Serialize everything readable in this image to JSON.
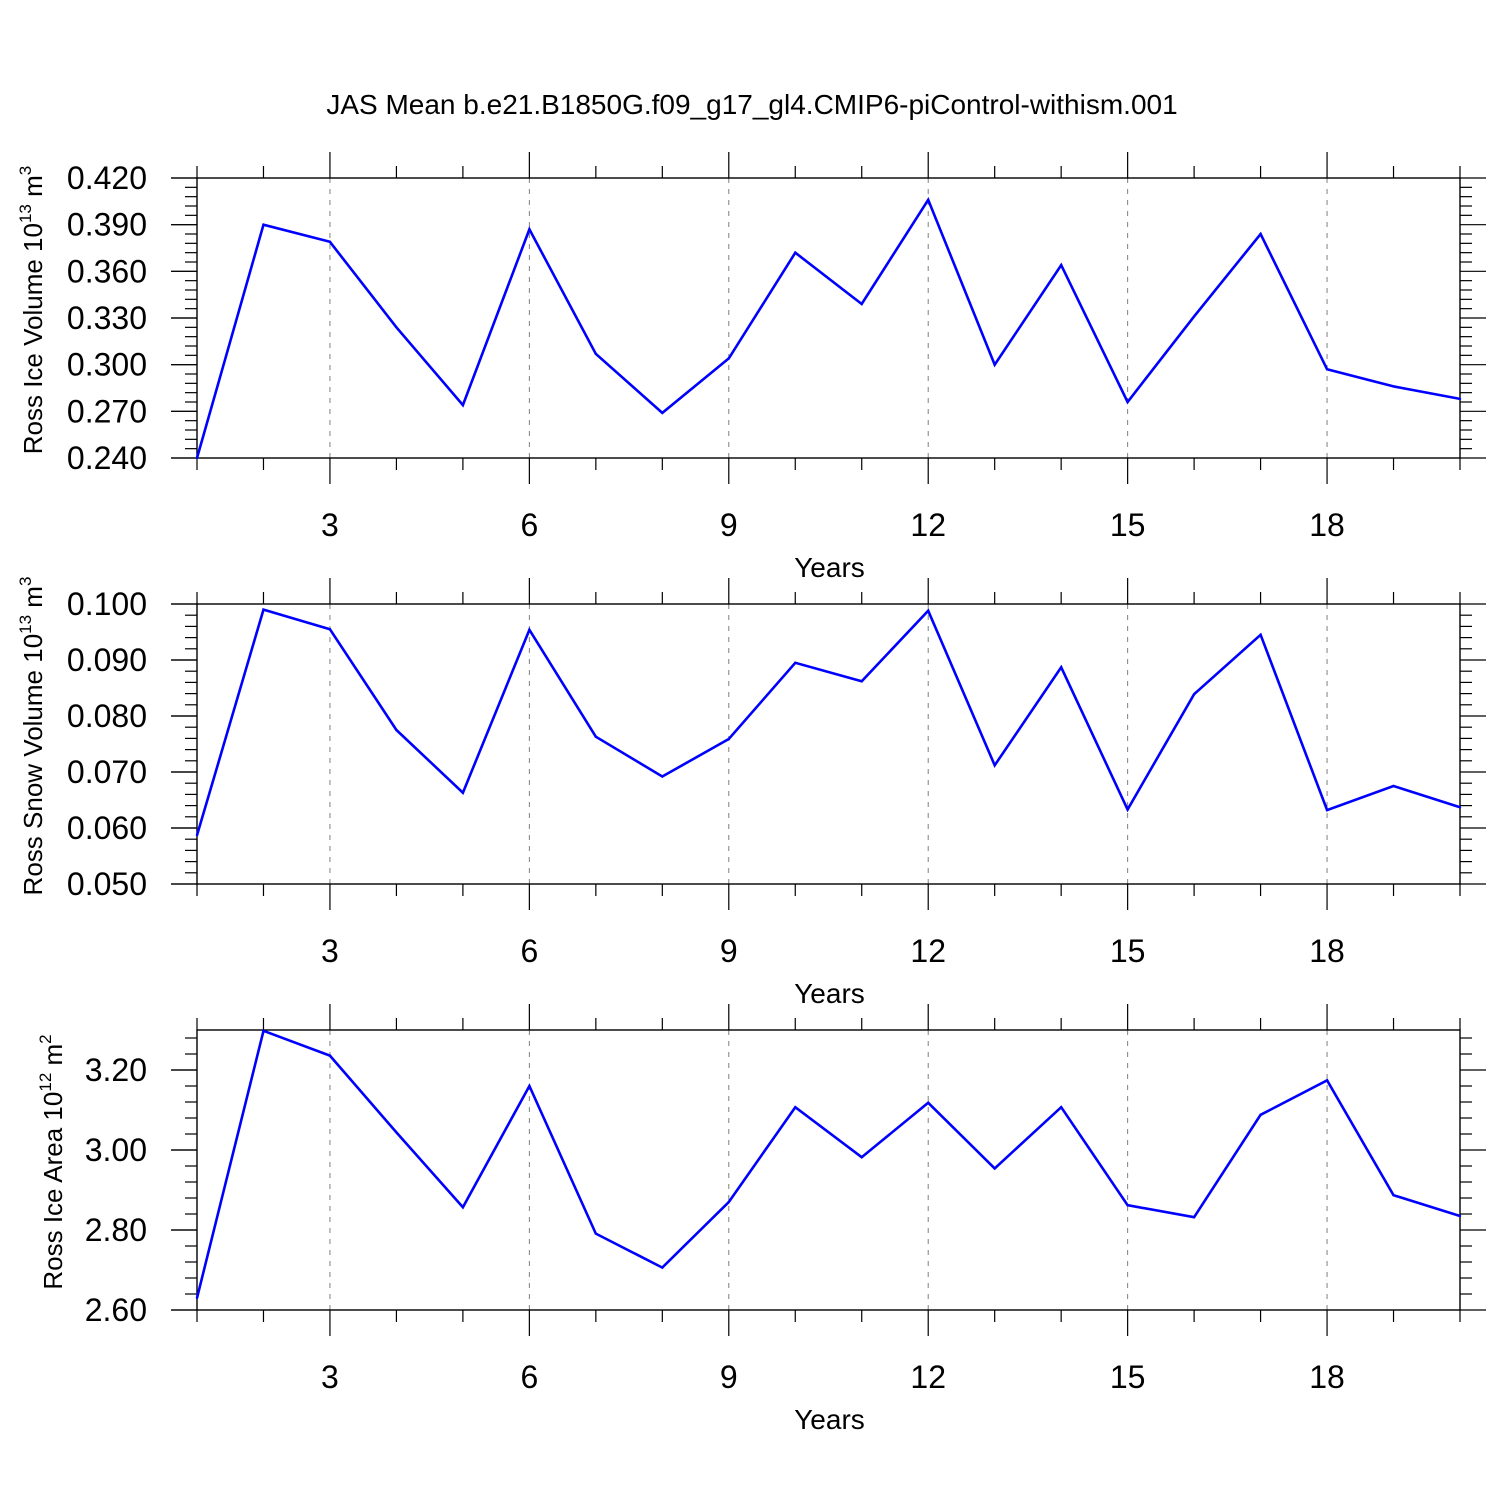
{
  "title": "JAS Mean b.e21.B1850G.f09_g17_gl4.CMIP6-piControl-withism.001",
  "chart_data": [
    {
      "type": "line",
      "xlabel": "Years",
      "ylabel_prefix": "Ross Ice Volume 10",
      "ylabel_exp": "13",
      "ylabel_unit": " m",
      "ylabel_unit_exp": "3",
      "xlim": [
        1,
        20
      ],
      "ylim": [
        0.24,
        0.42
      ],
      "x_ticks": [
        3,
        6,
        9,
        12,
        15,
        18
      ],
      "x_tick_labels": [
        "3",
        "6",
        "9",
        "12",
        "15",
        "18"
      ],
      "y_ticks": [
        0.24,
        0.27,
        0.3,
        0.33,
        0.36,
        0.39,
        0.42
      ],
      "y_tick_labels": [
        "0.240",
        "0.270",
        "0.300",
        "0.330",
        "0.360",
        "0.390",
        "0.420"
      ],
      "grid": "vertical dashed at major x ticks",
      "color": "#0000ff",
      "x": [
        1,
        2,
        3,
        4,
        5,
        6,
        7,
        8,
        9,
        10,
        11,
        12,
        13,
        14,
        15,
        16,
        17,
        18,
        19,
        20
      ],
      "values": [
        0.24,
        0.39,
        0.379,
        0.324,
        0.274,
        0.387,
        0.307,
        0.269,
        0.304,
        0.372,
        0.339,
        0.406,
        0.3,
        0.364,
        0.276,
        0.331,
        0.384,
        0.297,
        0.286,
        0.278
      ]
    },
    {
      "type": "line",
      "xlabel": "Years",
      "ylabel_prefix": "Ross Snow Volume 10",
      "ylabel_exp": "13",
      "ylabel_unit": " m",
      "ylabel_unit_exp": "3",
      "xlim": [
        1,
        20
      ],
      "ylim": [
        0.05,
        0.1
      ],
      "x_ticks": [
        3,
        6,
        9,
        12,
        15,
        18
      ],
      "x_tick_labels": [
        "3",
        "6",
        "9",
        "12",
        "15",
        "18"
      ],
      "y_ticks": [
        0.05,
        0.06,
        0.07,
        0.08,
        0.09,
        0.1
      ],
      "y_tick_labels": [
        "0.050",
        "0.060",
        "0.070",
        "0.080",
        "0.090",
        "0.100"
      ],
      "grid": "vertical dashed at major x ticks",
      "color": "#0000ff",
      "x": [
        1,
        2,
        3,
        4,
        5,
        6,
        7,
        8,
        9,
        10,
        11,
        12,
        13,
        14,
        15,
        16,
        17,
        18,
        19,
        20
      ],
      "values": [
        0.0587,
        0.099,
        0.0955,
        0.0775,
        0.0663,
        0.0954,
        0.0763,
        0.0692,
        0.0759,
        0.0895,
        0.0862,
        0.0988,
        0.0712,
        0.0887,
        0.0633,
        0.0839,
        0.0945,
        0.0632,
        0.0675,
        0.0637
      ]
    },
    {
      "type": "line",
      "xlabel": "Years",
      "ylabel_prefix": "Ross Ice Area 10",
      "ylabel_exp": "12",
      "ylabel_unit": " m",
      "ylabel_unit_exp": "2",
      "xlim": [
        1,
        20
      ],
      "ylim": [
        2.6,
        3.3
      ],
      "x_ticks": [
        3,
        6,
        9,
        12,
        15,
        18
      ],
      "x_tick_labels": [
        "3",
        "6",
        "9",
        "12",
        "15",
        "18"
      ],
      "y_ticks": [
        2.6,
        2.8,
        3.0,
        3.2
      ],
      "y_tick_labels": [
        "2.60",
        "2.80",
        "3.00",
        "3.20"
      ],
      "grid": "vertical dashed at major x ticks",
      "color": "#0000ff",
      "x": [
        1,
        2,
        3,
        4,
        5,
        6,
        7,
        8,
        9,
        10,
        11,
        12,
        13,
        14,
        15,
        16,
        17,
        18,
        19,
        20
      ],
      "values": [
        2.63,
        3.298,
        3.236,
        3.044,
        2.857,
        3.16,
        2.791,
        2.706,
        2.87,
        3.107,
        2.982,
        3.118,
        2.954,
        3.107,
        2.862,
        2.832,
        3.088,
        3.174,
        2.887,
        2.835
      ]
    }
  ]
}
